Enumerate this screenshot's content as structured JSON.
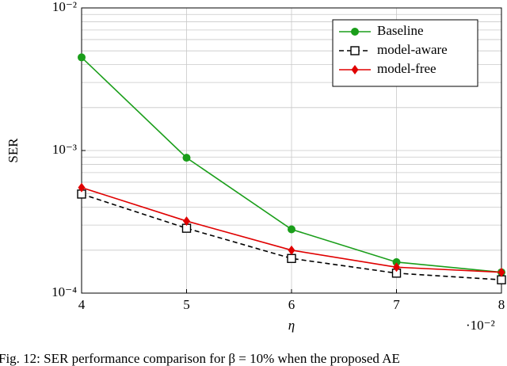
{
  "chart_data": {
    "type": "line",
    "x_label": "η",
    "y_label": "SER",
    "x_multiplier": "·10⁻²",
    "caption": "Fig. 12: SER performance comparison for β = 10% when the proposed AE",
    "x": [
      0.04,
      0.05,
      0.06,
      0.07,
      0.08
    ],
    "series": [
      {
        "name": "Baseline",
        "color": "#1a9e1a",
        "marker": "circle",
        "dash": false,
        "values": [
          0.0045,
          0.00089,
          0.00028,
          0.000165,
          0.00014
        ]
      },
      {
        "name": "model-aware",
        "color": "#000000",
        "marker": "square",
        "dash": true,
        "values": [
          0.000495,
          0.000285,
          0.000175,
          0.000138,
          0.000124
        ]
      },
      {
        "name": "model-free",
        "color": "#e00000",
        "marker": "diamond",
        "dash": false,
        "values": [
          0.00055,
          0.00032,
          0.0002,
          0.000152,
          0.00014
        ]
      }
    ],
    "xlim": [
      0.04,
      0.08
    ],
    "xticks": [
      {
        "value": 0.04,
        "label": "4"
      },
      {
        "value": 0.05,
        "label": "5"
      },
      {
        "value": 0.06,
        "label": "6"
      },
      {
        "value": 0.07,
        "label": "7"
      },
      {
        "value": 0.08,
        "label": "8"
      }
    ],
    "ylim": [
      0.0001,
      0.01
    ],
    "yticks": [
      {
        "value": 0.0001,
        "label": "10⁻⁴"
      },
      {
        "value": 0.001,
        "label": "10⁻³"
      },
      {
        "value": 0.01,
        "label": "10⁻²"
      }
    ],
    "ylog": true,
    "grid": true,
    "legend": "top-right"
  }
}
